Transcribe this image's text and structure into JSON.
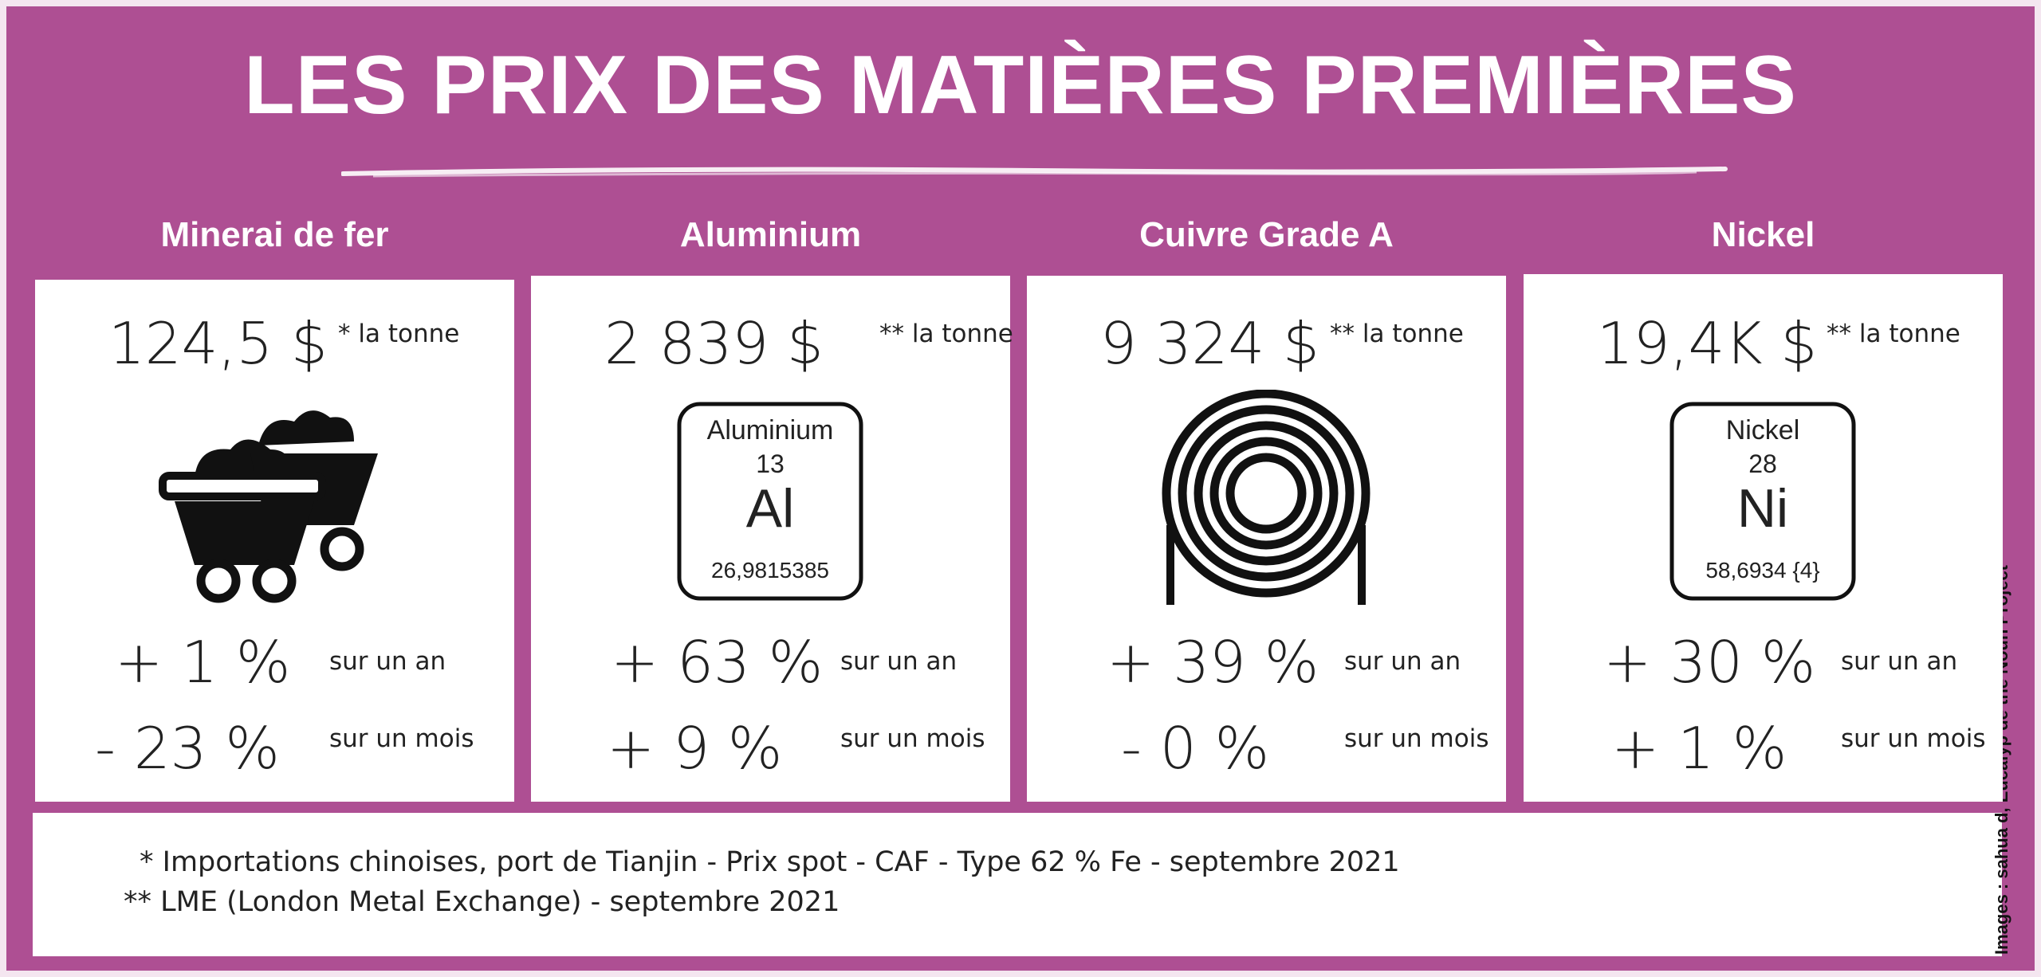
{
  "title": "LES PRIX DES MATIÈRES PREMIÈRES",
  "cards": [
    {
      "name": "Minerai de fer",
      "price": "124,5 $",
      "price_note": "* la tonne",
      "year_change": "+ 1 %",
      "year_label": "sur un an",
      "month_change": "- 23 %",
      "month_label": "sur un mois"
    },
    {
      "name": "Aluminium",
      "price": "2 839 $",
      "price_note": "** la tonne",
      "element": {
        "name": "Aluminium",
        "number": "13",
        "symbol": "Al",
        "mass": "26,9815385"
      },
      "year_change": "+ 63 %",
      "year_label": "sur un an",
      "month_change": "+ 9 %",
      "month_label": "sur un mois"
    },
    {
      "name": "Cuivre Grade A",
      "price": "9 324 $",
      "price_note": "** la tonne",
      "year_change": "+ 39 %",
      "year_label": "sur un an",
      "month_change": "- 0 %",
      "month_label": "sur un mois"
    },
    {
      "name": "Nickel",
      "price": "19,4K $",
      "price_note": "** la tonne",
      "element": {
        "name": "Nickel",
        "number": "28",
        "symbol": "Ni",
        "mass": "58,6934 {4}"
      },
      "year_change": "+ 30 %",
      "year_label": "sur un an",
      "month_change": "+ 1 %",
      "month_label": "sur un mois"
    }
  ],
  "footnotes": [
    "* Importations chinoises, port de Tianjin - Prix spot - CAF - Type 62 % Fe - septembre 2021",
    "** LME (London Metal Exchange) - septembre 2021"
  ],
  "credit": "Images :  sahua d, Eucalyp de the Noun Project"
}
